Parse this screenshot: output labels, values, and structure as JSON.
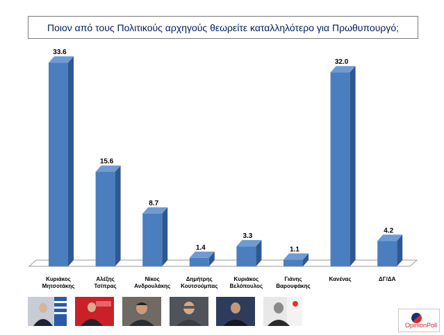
{
  "chart_data": {
    "type": "bar",
    "title": "Ποιον από τους Πολιτικούς αρχηγούς θεωρείτε καταλληλότερο για Πρωθυπουργό;",
    "categories": [
      [
        "Κυριάκος",
        "Μητσοτάκης"
      ],
      [
        "Αλέξης",
        "Τσίπρας"
      ],
      [
        "Νίκος",
        "Ανδρουλάκης"
      ],
      [
        "Δημήτρης",
        "Κουτσούμπας"
      ],
      [
        "Κυριάκος",
        "Βελόπουλος"
      ],
      [
        "Γιάνης",
        "Βαρουφάκης"
      ],
      [
        "Κανένας"
      ],
      [
        "ΔΓ/ΔΑ"
      ]
    ],
    "values": [
      33.6,
      15.6,
      8.7,
      1.4,
      3.3,
      1.1,
      32.0,
      4.2
    ],
    "value_labels": [
      "33.6",
      "15.6",
      "8.7",
      "1.4",
      "3.3",
      "1.1",
      "32.0",
      "4.2"
    ],
    "ylim": [
      0,
      35
    ],
    "grid": false,
    "legend": "none",
    "bar_color": "#4a7ebf"
  },
  "logo": {
    "text": "OpinionPoll"
  },
  "photos": [
    "portrait-1",
    "portrait-2",
    "portrait-3",
    "portrait-4",
    "portrait-5",
    "portrait-6"
  ]
}
